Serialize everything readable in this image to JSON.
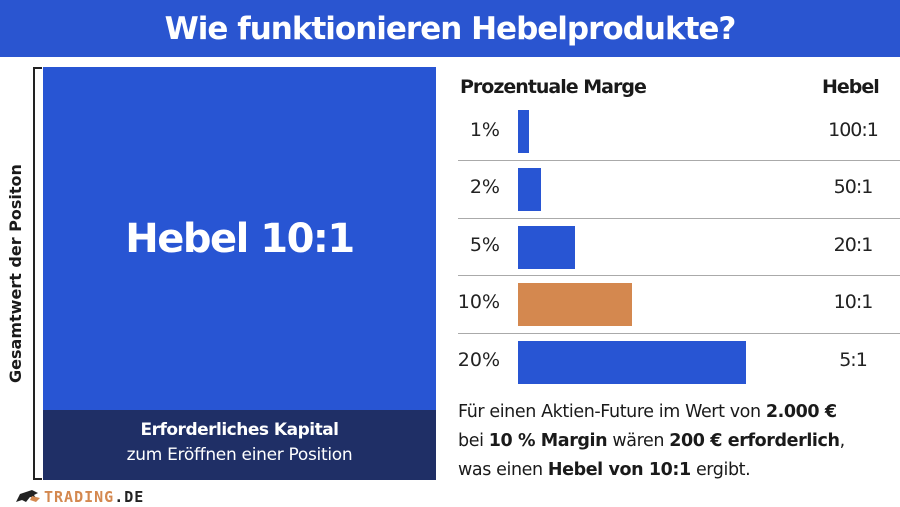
{
  "title": "Wie funktionieren Hebelprodukte?",
  "left": {
    "vertical_label": "Gesamtwert der Positon",
    "box_label": "Hebel 10:1",
    "caption_bold": "Erforderliches Kapital",
    "caption": "zum Eröffnen einer Position"
  },
  "logo": {
    "text_main": "TRADING",
    "text_suffix": ".DE"
  },
  "table": {
    "col_margin": "Prozentuale Marge",
    "col_leverage": "Hebel",
    "rows": [
      {
        "margin_label": "1%",
        "margin_pct": 1,
        "leverage": "100:1",
        "color": "#2855d3"
      },
      {
        "margin_label": "2%",
        "margin_pct": 2,
        "leverage": "50:1",
        "color": "#2855d3"
      },
      {
        "margin_label": "5%",
        "margin_pct": 5,
        "leverage": "20:1",
        "color": "#2855d3"
      },
      {
        "margin_label": "10%",
        "margin_pct": 10,
        "leverage": "10:1",
        "color": "#d4884f"
      },
      {
        "margin_label": "20%",
        "margin_pct": 20,
        "leverage": "5:1",
        "color": "#2855d3"
      }
    ]
  },
  "note": {
    "p1": "Für einen Aktien-Future im Wert von ",
    "b1": "2.000 €",
    "p2": "bei ",
    "b2": "10 % Margin",
    "p3": " wären ",
    "b3": "200 € erforderlich",
    "p4": ",",
    "p5": "was einen ",
    "b4": "Hebel von 10:1",
    "p6": " ergibt."
  },
  "colors": {
    "header": "#2a55d0",
    "box": "#2855d3",
    "caption_bg": "#1f2f66",
    "highlight": "#d4884f"
  }
}
